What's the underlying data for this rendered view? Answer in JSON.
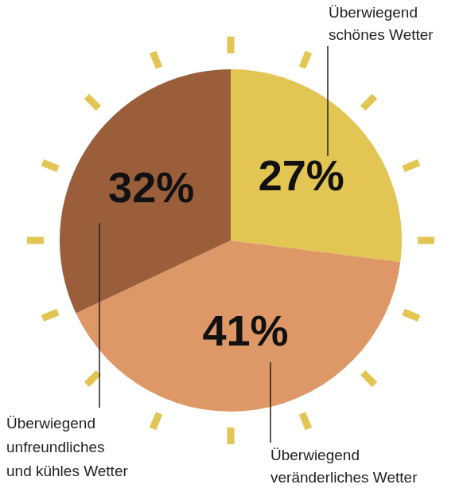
{
  "chart_data": {
    "type": "pie",
    "categories": [
      "Überwiegend\nschönes Wetter",
      "Überwiegend\nveränderliches Wetter",
      "Überwiegend\nunfreundliches\nund kühles Wetter"
    ],
    "values": [
      27,
      41,
      32
    ],
    "value_labels": [
      "27%",
      "41%",
      "32%"
    ],
    "colors": [
      "#e2c552",
      "#de9766",
      "#9a5e3a"
    ],
    "data_labels": true
  }
}
